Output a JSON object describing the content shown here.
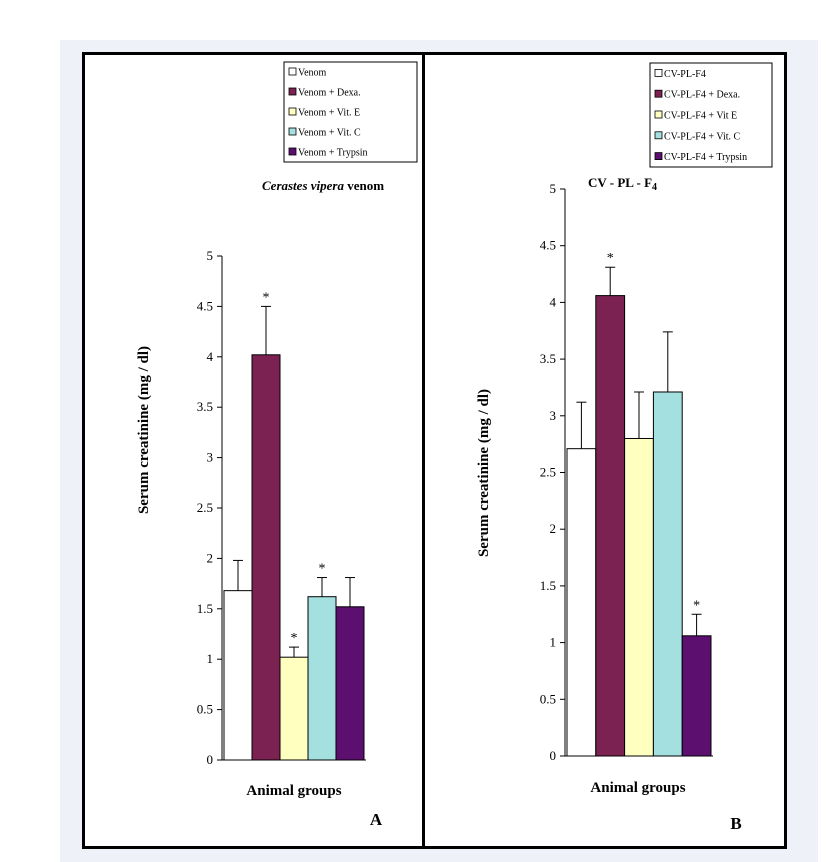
{
  "chart_data": [
    {
      "type": "bar",
      "panel_label": "A",
      "title_italic": "Cerastes vipera",
      "title_rest": " venom",
      "xlabel": "Animal groups",
      "ylabel": "Serum creatinine (mg / dl)",
      "ylim": [
        0,
        5
      ],
      "yticks": [
        0,
        0.5,
        1,
        1.5,
        2,
        2.5,
        3,
        3.5,
        4,
        4.5,
        5
      ],
      "grid": false,
      "legend_position": "top-right",
      "series": [
        {
          "name": "Venom",
          "value": 1.68,
          "error": 0.3,
          "significant": false,
          "color": "#ffffff"
        },
        {
          "name": "Venom + Dexa.",
          "value": 4.02,
          "error": 0.48,
          "significant": true,
          "color": "#7b2252"
        },
        {
          "name": "Venom + Vit. E",
          "value": 1.02,
          "error": 0.1,
          "significant": true,
          "color": "#ffffc0"
        },
        {
          "name": "Venom + Vit. C",
          "value": 1.62,
          "error": 0.19,
          "significant": true,
          "color": "#a4e0e0"
        },
        {
          "name": "Venom + Trypsin",
          "value": 1.52,
          "error": 0.29,
          "significant": false,
          "color": "#5c0f6e"
        }
      ]
    },
    {
      "type": "bar",
      "panel_label": "B",
      "title_main": "CV - PL - F",
      "title_sub": "4",
      "xlabel": "Animal groups",
      "ylabel": "Serum creatinine (mg / dl)",
      "ylim": [
        0,
        5
      ],
      "yticks": [
        0,
        0.5,
        1,
        1.5,
        2,
        2.5,
        3,
        3.5,
        4,
        4.5,
        5
      ],
      "grid": false,
      "legend_position": "top-right",
      "series": [
        {
          "name": "CV-PL-F4",
          "value": 2.71,
          "error": 0.41,
          "significant": false,
          "color": "#ffffff"
        },
        {
          "name": "CV-PL-F4  + Dexa.",
          "value": 4.06,
          "error": 0.25,
          "significant": true,
          "color": "#7b2252"
        },
        {
          "name": "CV-PL-F4  + Vit E",
          "value": 2.8,
          "error": 0.41,
          "significant": false,
          "color": "#ffffc0"
        },
        {
          "name": "CV-PL-F4  + Vit. C",
          "value": 3.21,
          "error": 0.53,
          "significant": false,
          "color": "#a4e0e0"
        },
        {
          "name": "CV-PL-F4 + Trypsin",
          "value": 1.06,
          "error": 0.19,
          "significant": true,
          "color": "#5c0f6e"
        }
      ]
    }
  ],
  "significance_marker": "*"
}
